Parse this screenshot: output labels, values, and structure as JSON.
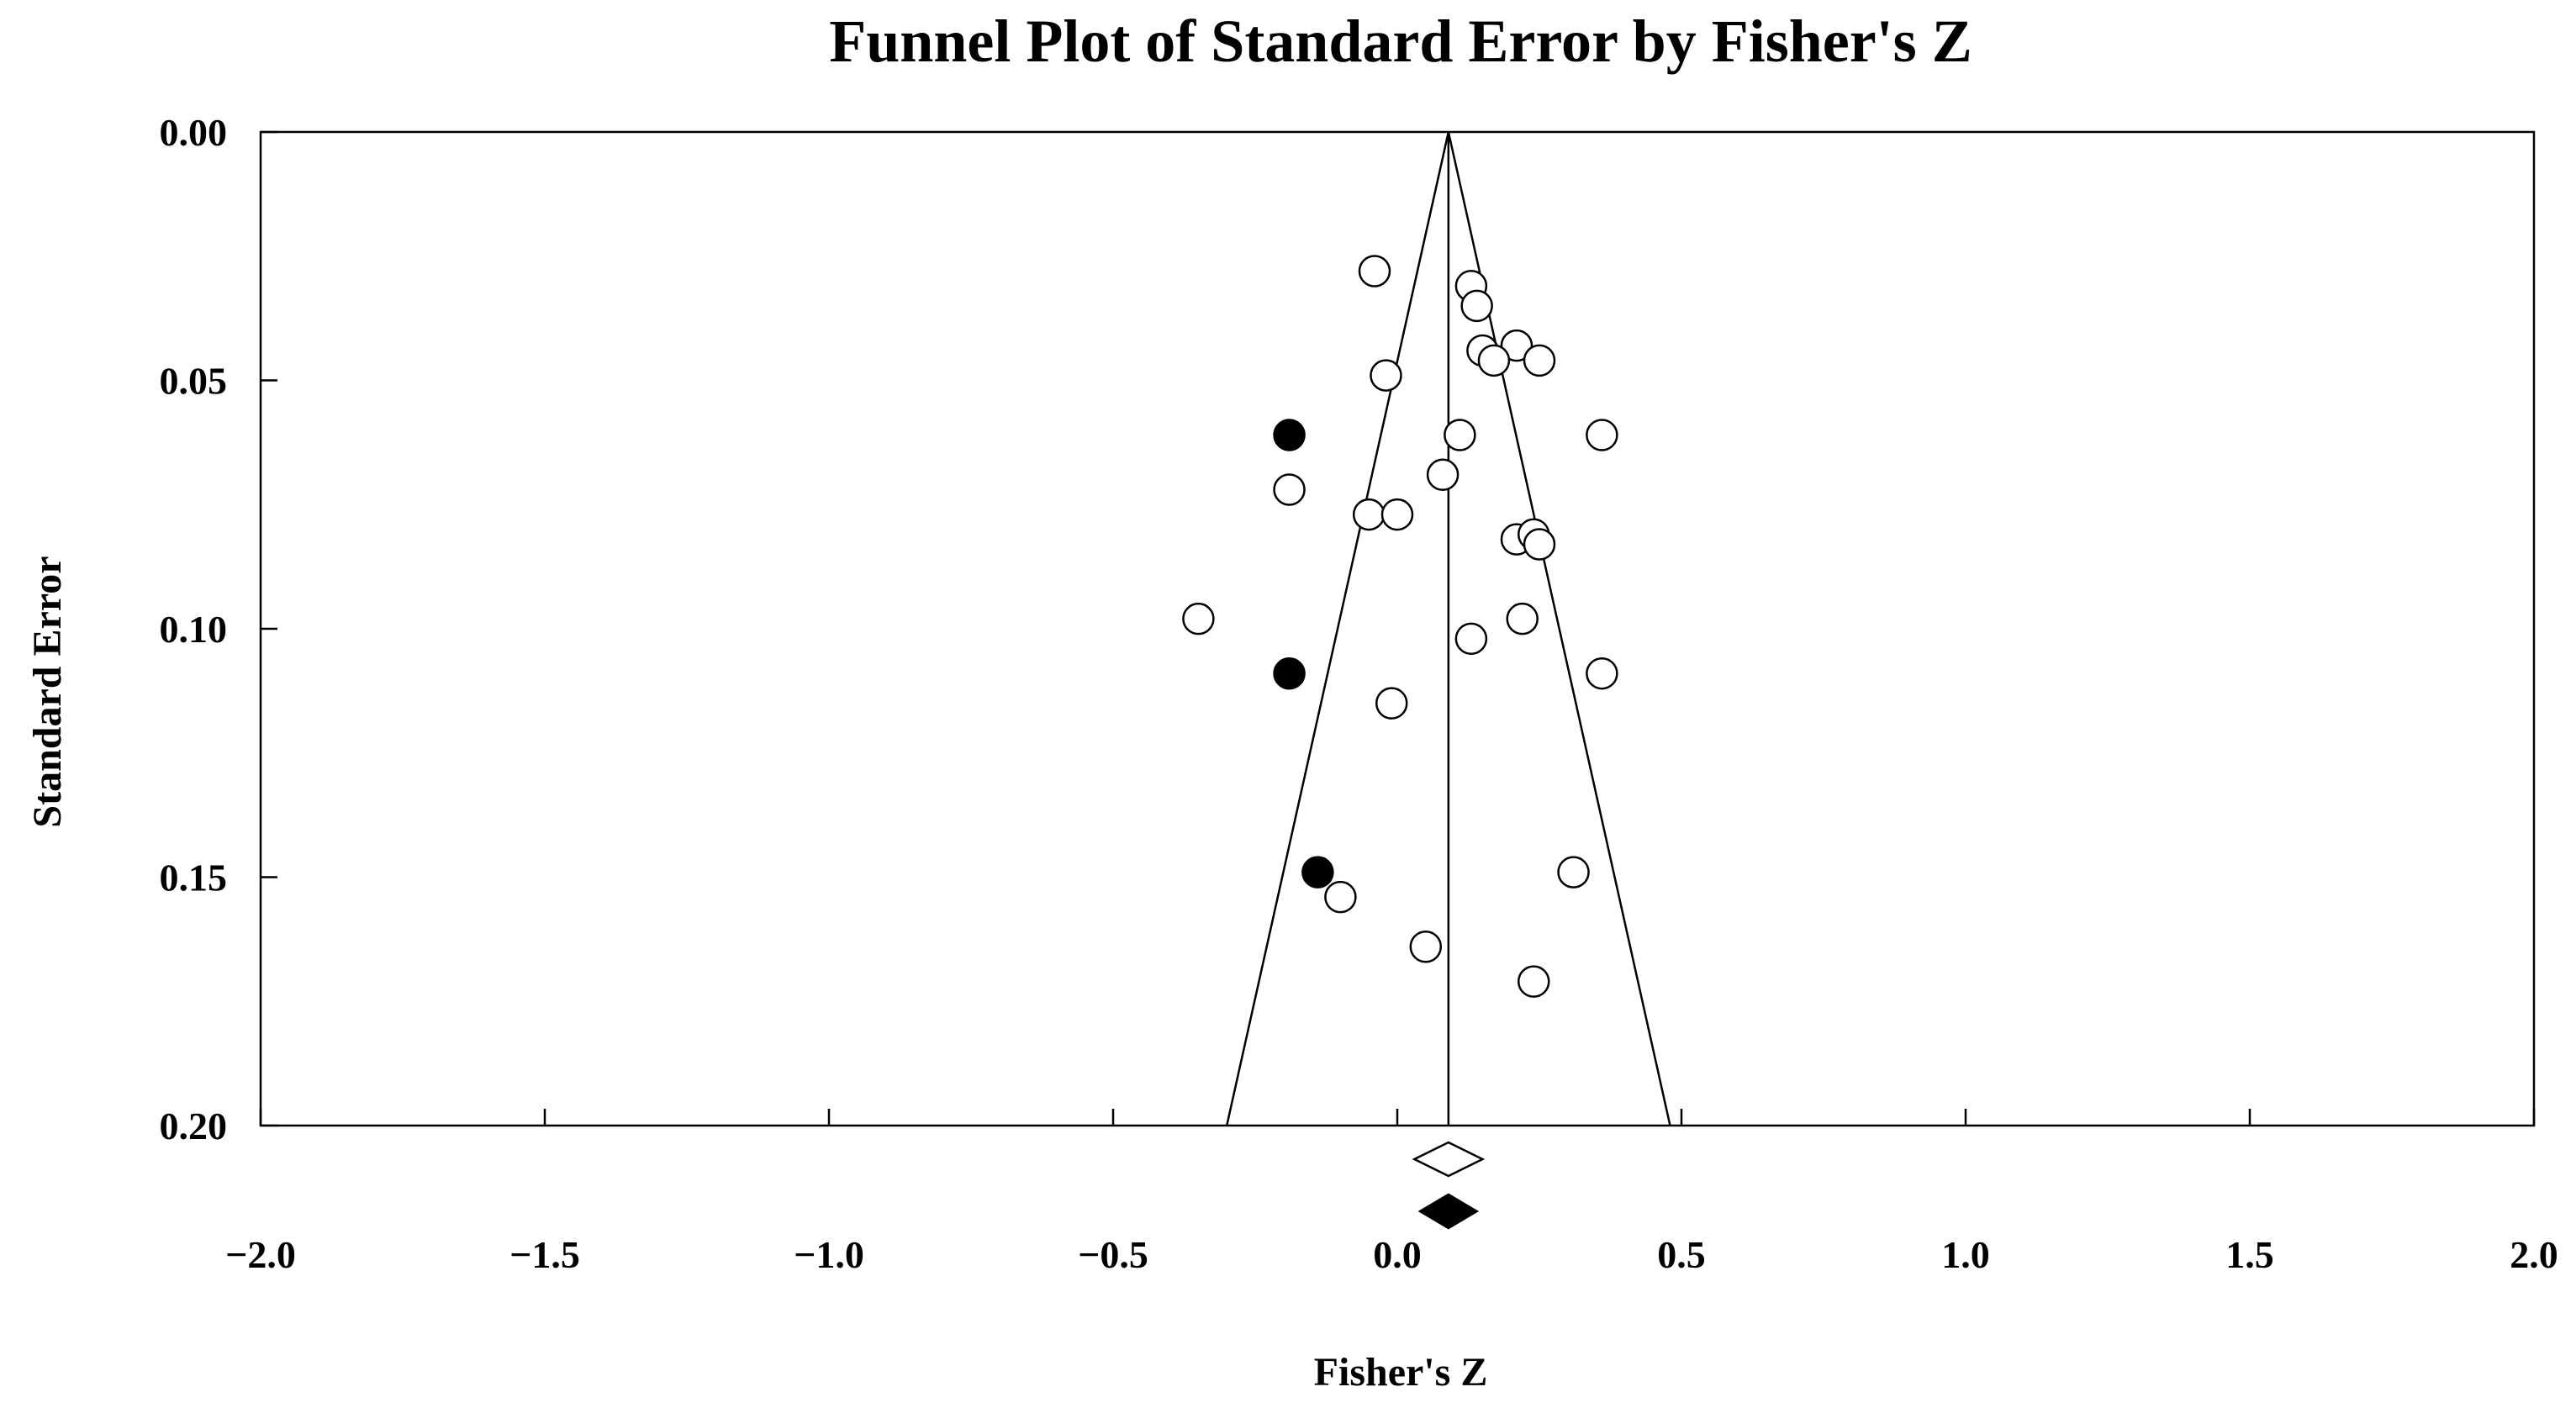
{
  "chart_data": {
    "type": "scatter",
    "title": "Funnel Plot of Standard Error by Fisher's Z",
    "xlabel": "Fisher's Z",
    "ylabel": "Standard Error",
    "xlim": [
      -2.0,
      2.0
    ],
    "ylim": [
      0.0,
      0.2
    ],
    "y_inverted": true,
    "grid": false,
    "x_ticks": [
      "-2.0",
      "-1.5",
      "-1.0",
      "-0.5",
      "0.0",
      "0.5",
      "1.0",
      "1.5",
      "2.0"
    ],
    "y_ticks": [
      "0.00",
      "0.05",
      "0.10",
      "0.15",
      "0.20"
    ],
    "funnel": {
      "center": 0.09,
      "se_max": 0.2,
      "lower_at_se_max": -0.3,
      "upper_at_se_max": 0.48
    },
    "series": [
      {
        "marker": "open-circle",
        "points": [
          {
            "x": -0.04,
            "y": 0.028
          },
          {
            "x": 0.13,
            "y": 0.031
          },
          {
            "x": 0.14,
            "y": 0.035
          },
          {
            "x": 0.15,
            "y": 0.044
          },
          {
            "x": 0.21,
            "y": 0.043
          },
          {
            "x": 0.17,
            "y": 0.046
          },
          {
            "x": 0.25,
            "y": 0.046
          },
          {
            "x": -0.02,
            "y": 0.049
          },
          {
            "x": 0.11,
            "y": 0.061
          },
          {
            "x": 0.36,
            "y": 0.061
          },
          {
            "x": 0.08,
            "y": 0.069
          },
          {
            "x": -0.19,
            "y": 0.072
          },
          {
            "x": -0.05,
            "y": 0.077
          },
          {
            "x": 0.0,
            "y": 0.077
          },
          {
            "x": 0.21,
            "y": 0.082
          },
          {
            "x": 0.24,
            "y": 0.081
          },
          {
            "x": 0.25,
            "y": 0.083
          },
          {
            "x": -0.35,
            "y": 0.098
          },
          {
            "x": 0.22,
            "y": 0.098
          },
          {
            "x": 0.13,
            "y": 0.102
          },
          {
            "x": 0.36,
            "y": 0.109
          },
          {
            "x": -0.01,
            "y": 0.115
          },
          {
            "x": 0.31,
            "y": 0.149
          },
          {
            "x": -0.1,
            "y": 0.154
          },
          {
            "x": 0.05,
            "y": 0.164
          },
          {
            "x": 0.24,
            "y": 0.171
          }
        ]
      },
      {
        "marker": "filled-circle",
        "points": [
          {
            "x": -0.19,
            "y": 0.061
          },
          {
            "x": -0.19,
            "y": 0.109
          },
          {
            "x": -0.14,
            "y": 0.149
          }
        ]
      }
    ],
    "summary_diamonds": [
      {
        "style": "open",
        "center": 0.09,
        "low": 0.03,
        "high": 0.15
      },
      {
        "style": "filled",
        "center": 0.09,
        "low": 0.04,
        "high": 0.14
      }
    ]
  }
}
